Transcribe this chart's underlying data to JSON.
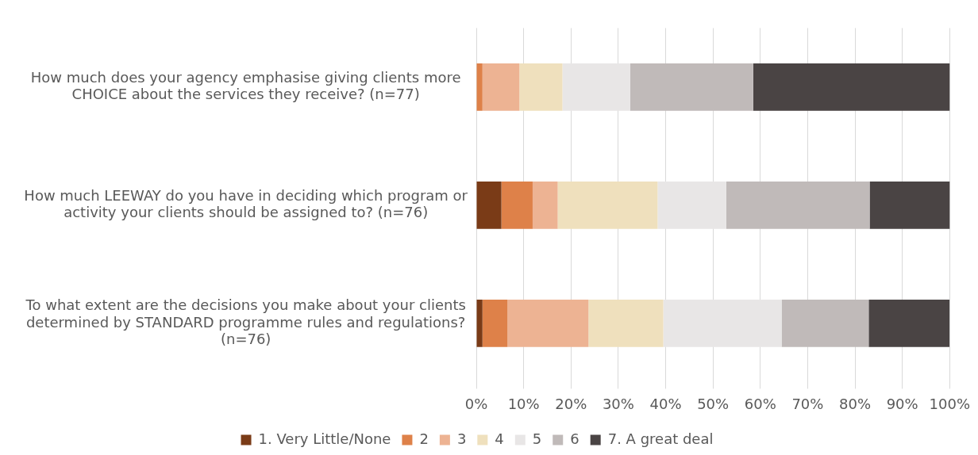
{
  "chart_data": {
    "type": "bar",
    "orientation": "horizontal",
    "stacked": true,
    "categories": [
      "How much does your agency emphasise giving clients more CHOICE about the services they receive? (n=77)",
      "How much LEEWAY do you have in deciding which program or activity your clients should be assigned to? (n=76)",
      "To what extent are the decisions you make about your clients determined by STANDARD programme rules and regulations? (n=76)"
    ],
    "series": [
      {
        "name": "1. Very Little/None",
        "color": "#7a3b17",
        "values": [
          0,
          5.3,
          1.3
        ]
      },
      {
        "name": "2",
        "color": "#de8149",
        "values": [
          1.3,
          6.6,
          5.3
        ]
      },
      {
        "name": "3",
        "color": "#edb393",
        "values": [
          7.8,
          5.3,
          17.1
        ]
      },
      {
        "name": "4",
        "color": "#efe0bd",
        "values": [
          9.1,
          21.1,
          15.8
        ]
      },
      {
        "name": "5",
        "color": "#e8e6e6",
        "values": [
          14.3,
          14.5,
          25.0
        ]
      },
      {
        "name": "6",
        "color": "#c0bab9",
        "values": [
          26.0,
          30.3,
          18.4
        ]
      },
      {
        "name": "7. A great deal",
        "color": "#4a4444",
        "values": [
          41.6,
          17.1,
          17.1
        ]
      }
    ],
    "xlim": [
      0,
      100
    ],
    "xticks": [
      {
        "value": 0,
        "label": "0%"
      },
      {
        "value": 10,
        "label": "10%"
      },
      {
        "value": 20,
        "label": "20%"
      },
      {
        "value": 30,
        "label": "30%"
      },
      {
        "value": 40,
        "label": "40%"
      },
      {
        "value": 50,
        "label": "50%"
      },
      {
        "value": 60,
        "label": "60%"
      },
      {
        "value": 70,
        "label": "70%"
      },
      {
        "value": 80,
        "label": "80%"
      },
      {
        "value": 90,
        "label": "90%"
      },
      {
        "value": 100,
        "label": "100%"
      }
    ],
    "grid": "x",
    "legend": "bottom"
  }
}
